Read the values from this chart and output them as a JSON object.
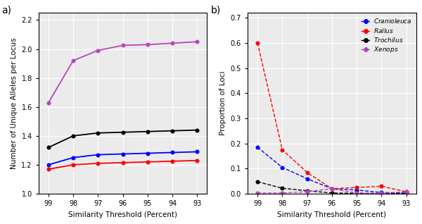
{
  "x": [
    99,
    98,
    97,
    96,
    95,
    94,
    93
  ],
  "panel_a": {
    "Cranioleuca": [
      1.2,
      1.25,
      1.27,
      1.275,
      1.28,
      1.285,
      1.29
    ],
    "Rallus": [
      1.17,
      1.2,
      1.21,
      1.215,
      1.22,
      1.225,
      1.23
    ],
    "Trochilus": [
      1.32,
      1.4,
      1.42,
      1.425,
      1.43,
      1.435,
      1.44
    ],
    "Xenops": [
      1.63,
      1.92,
      1.99,
      2.025,
      2.03,
      2.04,
      2.05
    ]
  },
  "panel_b": {
    "Cranioleuca": [
      0.185,
      0.105,
      0.06,
      0.02,
      0.015,
      0.005,
      0.003
    ],
    "Rallus": [
      0.6,
      0.175,
      0.085,
      0.02,
      0.025,
      0.03,
      0.008
    ],
    "Trochilus": [
      0.048,
      0.022,
      0.012,
      0.003,
      0.002,
      0.001,
      0.001
    ],
    "Xenops": [
      0.003,
      0.003,
      0.008,
      0.02,
      0.003,
      0.002,
      0.008
    ]
  },
  "colors": {
    "Cranioleuca": "#0000FF",
    "Rallus": "#FF0000",
    "Trochilus": "#000000",
    "Xenops": "#BB44BB"
  },
  "plot_bg": "#EBEBEB",
  "grid_color": "#FFFFFF",
  "xlim": [
    99.4,
    92.6
  ],
  "xticks": [
    99,
    98,
    97,
    96,
    95,
    94,
    93
  ],
  "panel_a_ylim": [
    1.0,
    2.25
  ],
  "panel_a_yticks": [
    1.0,
    1.2,
    1.4,
    1.6,
    1.8,
    2.0,
    2.2
  ],
  "panel_b_ylim": [
    0.0,
    0.72
  ],
  "panel_b_yticks": [
    0.0,
    0.1,
    0.2,
    0.3,
    0.4,
    0.5,
    0.6,
    0.7
  ],
  "xlabel": "Similarity Threshold (Percent)",
  "panel_a_ylabel": "Number of Unique Alleles per Locus",
  "panel_b_ylabel": "Proportion of Loci",
  "legend_species": [
    "Cranioleuca",
    "Rallus",
    "Trochilus",
    "Xenops"
  ],
  "tick_fontsize": 7,
  "label_fontsize": 7.5,
  "panel_label_fontsize": 10
}
